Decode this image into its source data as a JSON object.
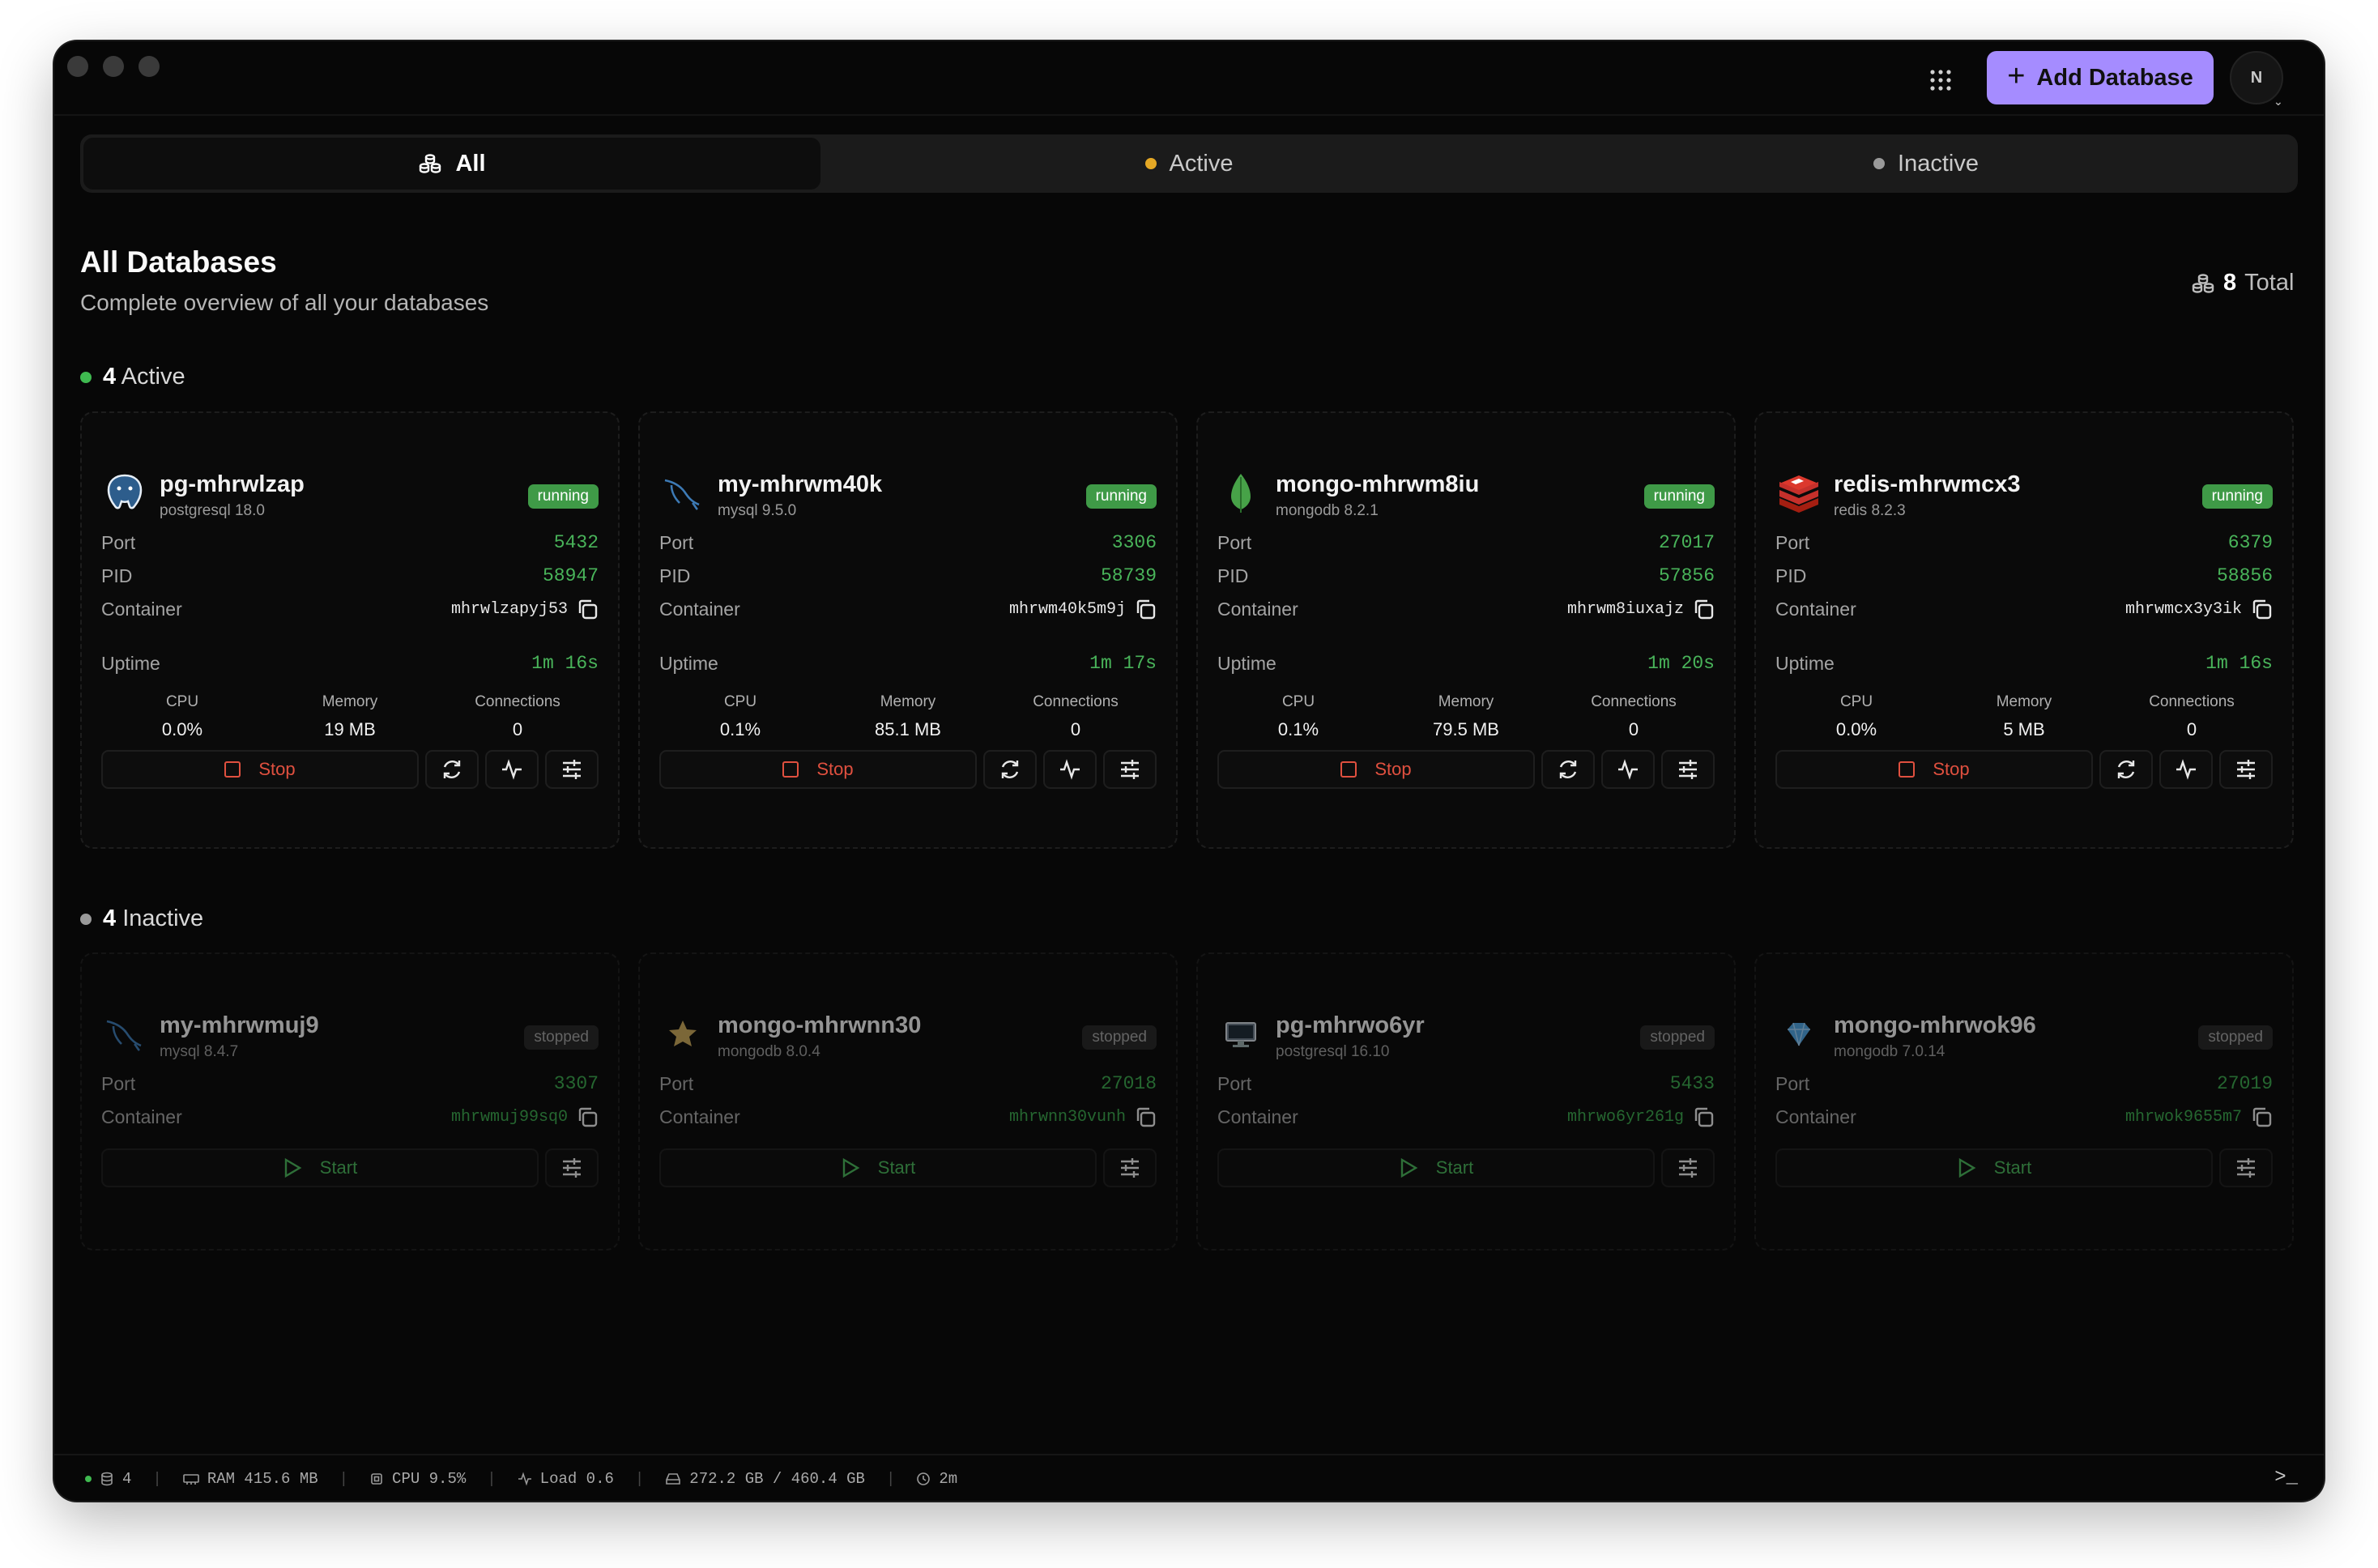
{
  "header": {
    "add_label": "Add Database",
    "avatar_initial": "N"
  },
  "tabs": [
    {
      "label": "All",
      "icon": "databases-icon"
    },
    {
      "label": "Active",
      "dot_color": "#e5a825"
    },
    {
      "label": "Inactive",
      "dot_color": "#9a9a9a"
    }
  ],
  "page": {
    "title": "All Databases",
    "subtitle": "Complete overview of all your databases",
    "total_count": "8",
    "total_label": "Total"
  },
  "sections": {
    "active": {
      "count": "4",
      "label": "Active",
      "dot_color": "#3fb950"
    },
    "inactive": {
      "count": "4",
      "label": "Inactive",
      "dot_color": "#9a9a9a"
    }
  },
  "labels": {
    "port": "Port",
    "pid": "PID",
    "container": "Container",
    "uptime": "Uptime",
    "cpu": "CPU",
    "memory": "Memory",
    "connections": "Connections",
    "stop": "Stop",
    "start": "Start"
  },
  "active_dbs": [
    {
      "name": "pg-mhrwlzap",
      "version": "postgresql 18.0",
      "status": "running",
      "port": "5432",
      "pid": "58947",
      "container": "mhrwlzapyj53",
      "uptime": "1m 16s",
      "cpu": "0.0%",
      "memory": "19 MB",
      "connections": "0",
      "icon": "postgresql-icon"
    },
    {
      "name": "my-mhrwm40k",
      "version": "mysql 9.5.0",
      "status": "running",
      "port": "3306",
      "pid": "58739",
      "container": "mhrwm40k5m9j",
      "uptime": "1m 17s",
      "cpu": "0.1%",
      "memory": "85.1 MB",
      "connections": "0",
      "icon": "mysql-icon"
    },
    {
      "name": "mongo-mhrwm8iu",
      "version": "mongodb 8.2.1",
      "status": "running",
      "port": "27017",
      "pid": "57856",
      "container": "mhrwm8iuxajz",
      "uptime": "1m 20s",
      "cpu": "0.1%",
      "memory": "79.5 MB",
      "connections": "0",
      "icon": "mongodb-icon"
    },
    {
      "name": "redis-mhrwmcx3",
      "version": "redis 8.2.3",
      "status": "running",
      "port": "6379",
      "pid": "58856",
      "container": "mhrwmcx3y3ik",
      "uptime": "1m 16s",
      "cpu": "0.0%",
      "memory": "5 MB",
      "connections": "0",
      "icon": "redis-icon"
    }
  ],
  "inactive_dbs": [
    {
      "name": "my-mhrwmuj9",
      "version": "mysql 8.4.7",
      "status": "stopped",
      "port": "3307",
      "container": "mhrwmuj99sq0",
      "icon": "mysql-icon"
    },
    {
      "name": "mongo-mhrwnn30",
      "version": "mongodb 8.0.4",
      "status": "stopped",
      "port": "27018",
      "container": "mhrwnn30vunh",
      "icon": "star-icon"
    },
    {
      "name": "pg-mhrwo6yr",
      "version": "postgresql 16.10",
      "status": "stopped",
      "port": "5433",
      "container": "mhrwo6yr261g",
      "icon": "monitor-icon"
    },
    {
      "name": "mongo-mhrwok96",
      "version": "mongodb 7.0.14",
      "status": "stopped",
      "port": "27019",
      "container": "mhrwok9655m7",
      "icon": "gem-icon"
    }
  ],
  "statusbar": {
    "db_count": "4",
    "ram": "RAM 415.6 MB",
    "cpu": "CPU 9.5%",
    "load": "Load 0.6",
    "disk": "272.2 GB / 460.4 GB",
    "time": "2m"
  },
  "colors": {
    "accent": "#a58cff",
    "running": "#3f9a47",
    "value_green": "#49b45a",
    "stop_red": "#e0503f"
  }
}
